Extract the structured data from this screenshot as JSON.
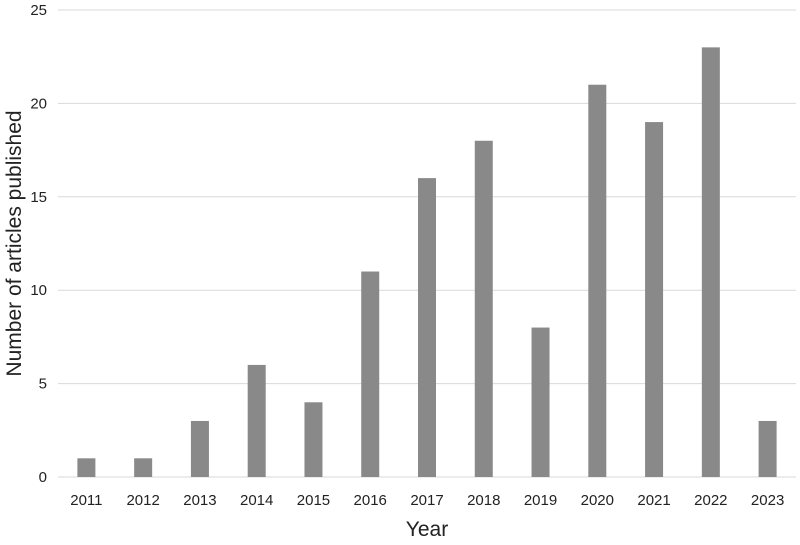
{
  "chart_data": {
    "type": "bar",
    "title": "",
    "xlabel": "Year",
    "ylabel": "Number of articles published",
    "categories": [
      "2011",
      "2012",
      "2013",
      "2014",
      "2015",
      "2016",
      "2017",
      "2018",
      "2019",
      "2020",
      "2021",
      "2022",
      "2023"
    ],
    "values": [
      1,
      1,
      3,
      6,
      4,
      11,
      16,
      18,
      8,
      21,
      19,
      23,
      3
    ],
    "ylim": [
      0,
      25
    ],
    "yticks": [
      "0",
      "5",
      "10",
      "15",
      "20",
      "25"
    ],
    "grid": "horizontal",
    "legend": "none",
    "bar_color": "#898989",
    "grid_color": "#d9d9d9",
    "text_color": "#222222"
  }
}
